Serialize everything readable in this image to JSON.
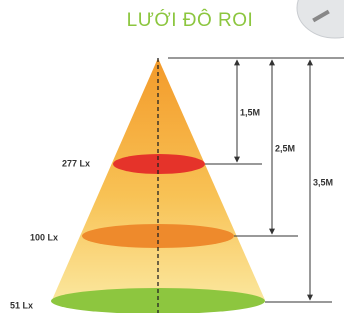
{
  "header": {
    "title": "LƯỚI ĐÔ ROI"
  },
  "levels": [
    {
      "lux": "277 Lx",
      "height": "1,5M"
    },
    {
      "lux": "100 Lx",
      "height": "2,5M"
    },
    {
      "lux": "51 Lx",
      "height": "3,5M"
    }
  ]
}
